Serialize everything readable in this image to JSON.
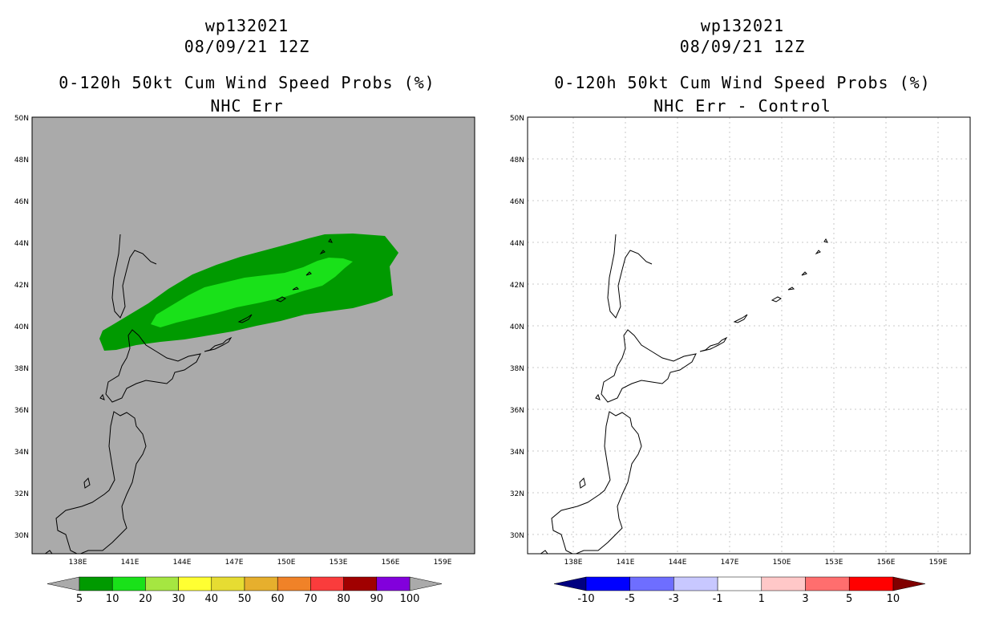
{
  "left_panel": {
    "title_line1": "wp132021",
    "title_line2": "08/09/21 12Z",
    "title_line3": "0-120h 50kt Cum Wind Speed Probs (%)",
    "title_line4": "NHC Err",
    "background_color": "#aaaaaa",
    "colorbar_labels": [
      "5",
      "10",
      "20",
      "30",
      "40",
      "50",
      "60",
      "70",
      "80",
      "90",
      "100"
    ],
    "colorbar_colors": [
      "#009a00",
      "#19e119",
      "#a5e641",
      "#ffff32",
      "#e6dc32",
      "#e6af2d",
      "#f08228",
      "#fa3c3c",
      "#a00000",
      "#8200dc"
    ]
  },
  "right_panel": {
    "title_line1": "wp132021",
    "title_line2": "08/09/21 12Z",
    "title_line3": "0-120h 50kt Cum Wind Speed Probs (%)",
    "title_line4": "NHC Err - Control",
    "background_color": "#ffffff",
    "colorbar_labels": [
      "-10",
      "-5",
      "-3",
      "-1",
      "1",
      "3",
      "5",
      "10"
    ],
    "colorbar_colors": [
      "#0000ff",
      "#6e6eff",
      "#c8c8ff",
      "#ffffff",
      "#ffc8c8",
      "#ff6e6e",
      "#ff0000"
    ]
  },
  "axes": {
    "lat_labels": [
      "50N",
      "48N",
      "46N",
      "44N",
      "42N",
      "40N",
      "38N",
      "36N",
      "34N",
      "32N",
      "30N"
    ],
    "lon_labels": [
      "138E",
      "141E",
      "144E",
      "147E",
      "150E",
      "153E",
      "156E",
      "159E"
    ]
  },
  "chart_data": {
    "type": "heatmap",
    "lat_range": [
      29,
      50
    ],
    "lon_range": [
      135.5,
      161
    ],
    "contours": [
      {
        "level": "5-10",
        "color": "#009a00"
      },
      {
        "level": "10-20",
        "color": "#19e119"
      }
    ]
  }
}
